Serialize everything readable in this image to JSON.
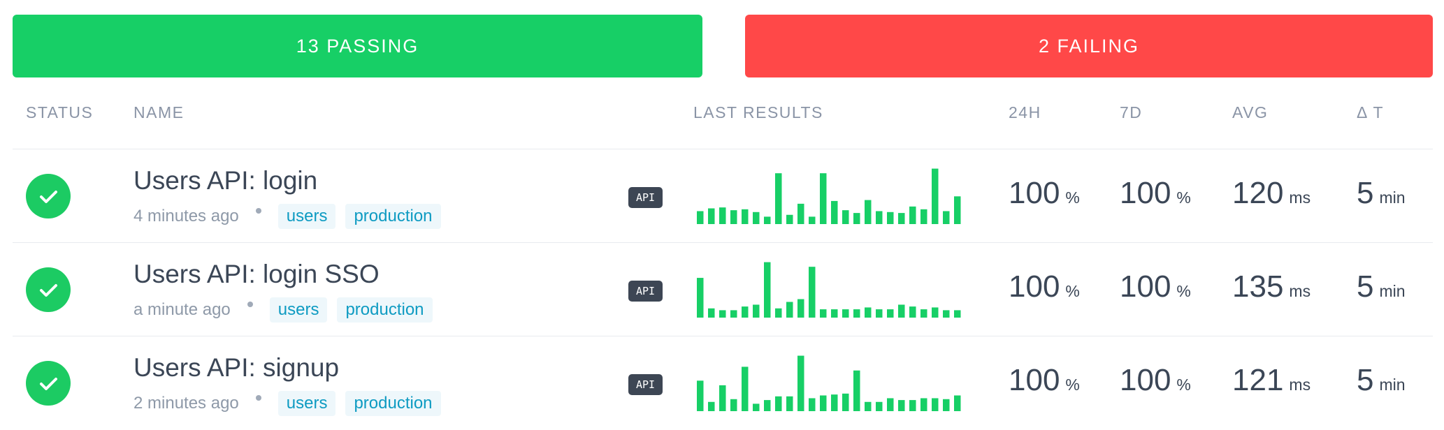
{
  "summary": {
    "passing": "13 PASSING",
    "failing": "2 FAILING"
  },
  "table": {
    "columns": [
      "STATUS",
      "NAME",
      "LAST RESULTS",
      "24H",
      "7D",
      "AVG",
      "Δ T"
    ],
    "rows": [
      {
        "name": "Users API: login",
        "time": "4 minutes ago",
        "tags": [
          "users",
          "production"
        ],
        "badge": "API",
        "results": [
          14,
          17,
          18,
          15,
          16,
          13,
          8,
          55,
          10,
          22,
          8,
          55,
          25,
          15,
          12,
          26,
          14,
          13,
          12,
          19,
          16,
          60,
          14,
          30
        ],
        "day": {
          "value": 100,
          "unit": "%"
        },
        "week": {
          "value": 100,
          "unit": "%"
        },
        "avg": {
          "value": 120,
          "unit": "ms"
        },
        "delta": {
          "value": 5,
          "unit": "min"
        }
      },
      {
        "name": "Users API: login SSO",
        "time": "a minute ago",
        "tags": [
          "users",
          "production"
        ],
        "badge": "API",
        "results": [
          43,
          10,
          8,
          8,
          12,
          14,
          60,
          10,
          17,
          20,
          55,
          9,
          9,
          9,
          9,
          11,
          9,
          9,
          14,
          12,
          9,
          11,
          8,
          8
        ],
        "day": {
          "value": 100,
          "unit": "%"
        },
        "week": {
          "value": 100,
          "unit": "%"
        },
        "avg": {
          "value": 135,
          "unit": "ms"
        },
        "delta": {
          "value": 5,
          "unit": "min"
        }
      },
      {
        "name": "Users API: signup",
        "time": "2 minutes ago",
        "tags": [
          "users",
          "production"
        ],
        "badge": "API",
        "results": [
          33,
          10,
          28,
          13,
          48,
          8,
          12,
          16,
          16,
          60,
          14,
          17,
          18,
          19,
          44,
          10,
          10,
          14,
          12,
          12,
          14,
          14,
          13,
          17
        ],
        "day": {
          "value": 100,
          "unit": "%"
        },
        "week": {
          "value": 100,
          "unit": "%"
        },
        "avg": {
          "value": 121,
          "unit": "ms"
        },
        "delta": {
          "value": 5,
          "unit": "min"
        }
      }
    ]
  }
}
